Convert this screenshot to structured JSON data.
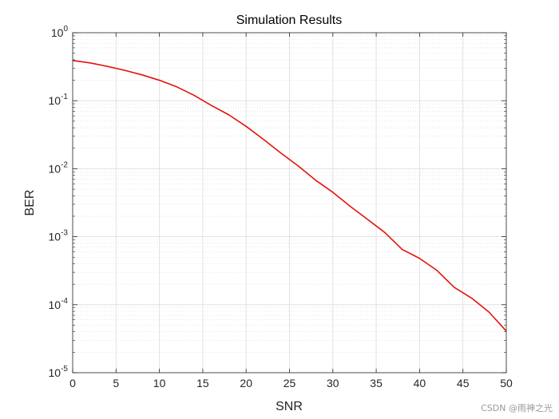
{
  "chart_data": {
    "type": "line",
    "title": "Simulation Results",
    "xlabel": "SNR",
    "ylabel": "BER",
    "xlim": [
      0,
      50
    ],
    "ylim": [
      1e-05,
      1
    ],
    "yscale": "log",
    "grid": true,
    "x_ticks": [
      "0",
      "5",
      "10",
      "15",
      "20",
      "25",
      "30",
      "35",
      "40",
      "45",
      "50"
    ],
    "y_ticks": [
      {
        "base": "10",
        "exp": "0"
      },
      {
        "base": "10",
        "exp": "-1"
      },
      {
        "base": "10",
        "exp": "-2"
      },
      {
        "base": "10",
        "exp": "-3"
      },
      {
        "base": "10",
        "exp": "-4"
      },
      {
        "base": "10",
        "exp": "-5"
      }
    ],
    "series": [
      {
        "name": "BER",
        "color": "#e3120b",
        "x": [
          0,
          2,
          4,
          6,
          8,
          10,
          12,
          14,
          16,
          18,
          20,
          22,
          24,
          26,
          28,
          30,
          32,
          34,
          36,
          38,
          40,
          42,
          44,
          46,
          48,
          50
        ],
        "y": [
          0.39,
          0.36,
          0.32,
          0.28,
          0.24,
          0.2,
          0.16,
          0.12,
          0.085,
          0.062,
          0.042,
          0.027,
          0.017,
          0.011,
          0.0068,
          0.0045,
          0.0028,
          0.0018,
          0.00115,
          0.00065,
          0.00048,
          0.00032,
          0.00018,
          0.000125,
          7.8e-05,
          4.1e-05
        ]
      }
    ]
  },
  "watermark": "CSDN @雨神之光"
}
